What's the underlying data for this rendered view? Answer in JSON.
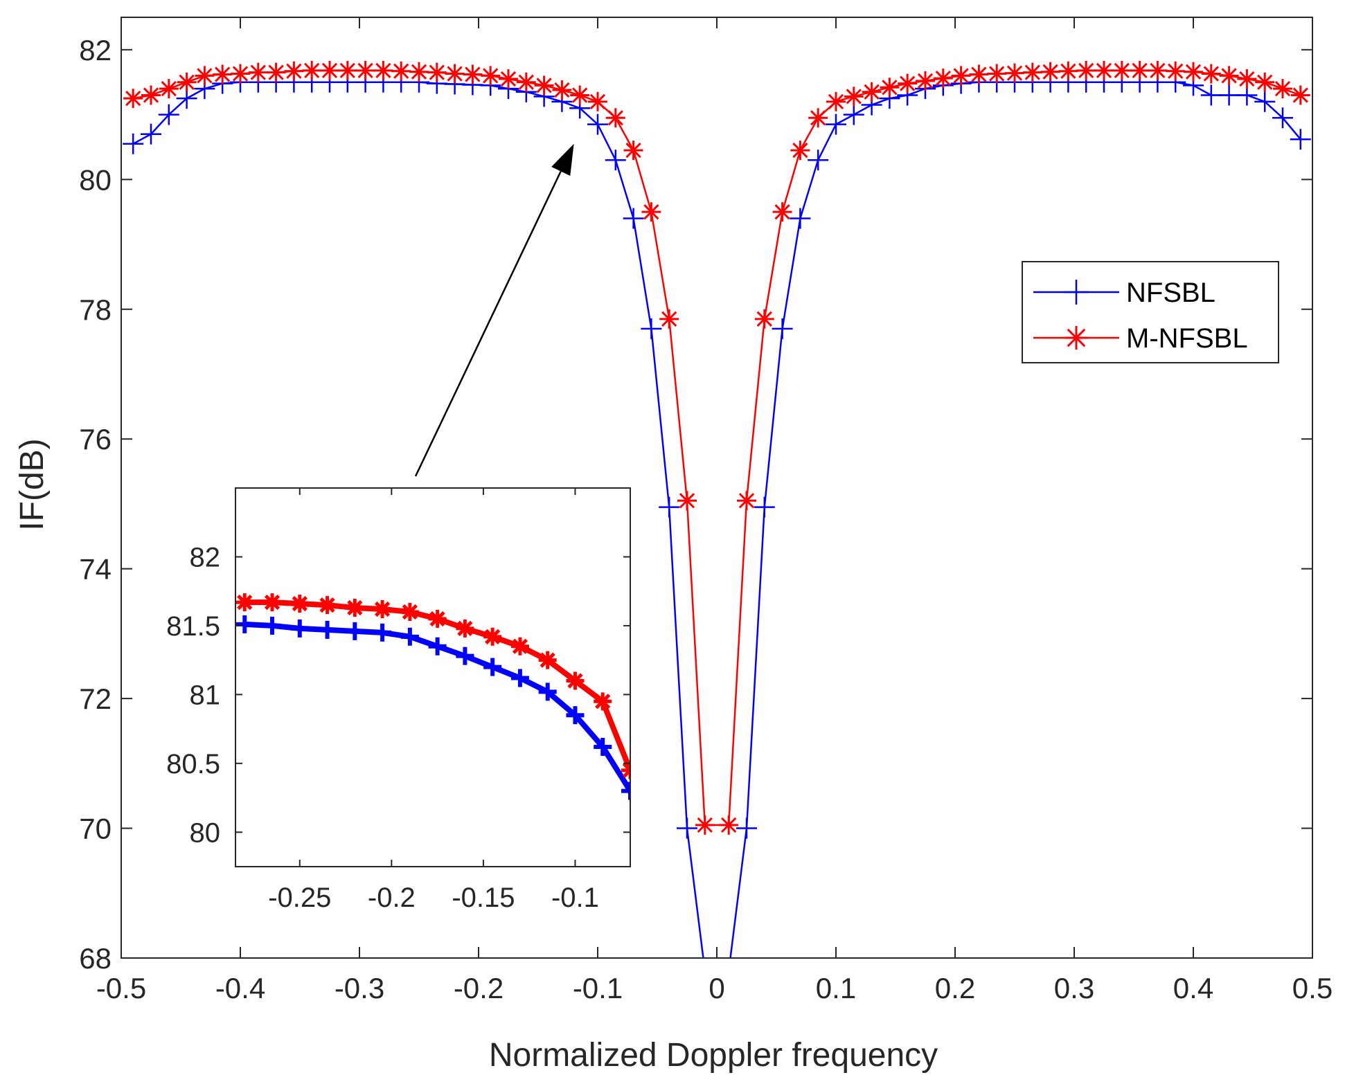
{
  "chart_data": [
    {
      "type": "line",
      "xlabel": "Normalized Doppler frequency",
      "ylabel": "IF(dB)",
      "xlim": [
        -0.5,
        0.5
      ],
      "ylim": [
        68,
        82.5
      ],
      "xticks": [
        -0.5,
        -0.4,
        -0.3,
        -0.2,
        -0.1,
        0,
        0.1,
        0.2,
        0.3,
        0.4,
        0.5
      ],
      "xtick_labels": [
        "-0.5",
        "-0.4",
        "-0.3",
        "-0.2",
        "-0.1",
        "0",
        "0.1",
        "0.2",
        "0.3",
        "0.4",
        "0.5"
      ],
      "yticks": [
        68,
        70,
        72,
        74,
        76,
        78,
        80,
        82
      ],
      "ytick_labels": [
        "68",
        "70",
        "72",
        "74",
        "76",
        "78",
        "80",
        "82"
      ],
      "grid": false,
      "legend": "right, upper-middle",
      "series": [
        {
          "name": "NFSBL",
          "color": "#0000ff",
          "marker": "plus",
          "x": [
            -0.49,
            -0.475,
            -0.46,
            -0.445,
            -0.43,
            -0.415,
            -0.4,
            -0.385,
            -0.37,
            -0.355,
            -0.34,
            -0.325,
            -0.31,
            -0.295,
            -0.28,
            -0.265,
            -0.25,
            -0.235,
            -0.22,
            -0.205,
            -0.19,
            -0.175,
            -0.16,
            -0.145,
            -0.13,
            -0.115,
            -0.1,
            -0.085,
            -0.07,
            -0.055,
            -0.04,
            -0.025,
            -0.01,
            0.01,
            0.025,
            0.04,
            0.055,
            0.07,
            0.085,
            0.1,
            0.115,
            0.13,
            0.145,
            0.16,
            0.175,
            0.19,
            0.205,
            0.22,
            0.235,
            0.25,
            0.265,
            0.28,
            0.295,
            0.31,
            0.325,
            0.34,
            0.355,
            0.37,
            0.385,
            0.4,
            0.415,
            0.43,
            0.445,
            0.46,
            0.475,
            0.49
          ],
          "y": [
            80.55,
            80.7,
            81.0,
            81.25,
            81.4,
            81.48,
            81.5,
            81.5,
            81.5,
            81.5,
            81.5,
            81.5,
            81.5,
            81.5,
            81.5,
            81.5,
            81.5,
            81.48,
            81.47,
            81.46,
            81.45,
            81.4,
            81.35,
            81.28,
            81.2,
            81.1,
            80.85,
            80.3,
            79.4,
            77.7,
            74.95,
            70.0,
            67.8,
            67.8,
            70.0,
            74.95,
            77.7,
            79.4,
            80.3,
            80.85,
            81.0,
            81.15,
            81.25,
            81.3,
            81.4,
            81.45,
            81.48,
            81.5,
            81.5,
            81.5,
            81.5,
            81.5,
            81.5,
            81.5,
            81.5,
            81.5,
            81.5,
            81.5,
            81.5,
            81.45,
            81.3,
            81.3,
            81.3,
            81.2,
            80.95,
            80.62
          ]
        },
        {
          "name": "M-NFSBL",
          "color": "#ff0000",
          "marker": "asterisk",
          "x": [
            -0.49,
            -0.475,
            -0.46,
            -0.445,
            -0.43,
            -0.415,
            -0.4,
            -0.385,
            -0.37,
            -0.355,
            -0.34,
            -0.325,
            -0.31,
            -0.295,
            -0.28,
            -0.265,
            -0.25,
            -0.235,
            -0.22,
            -0.205,
            -0.19,
            -0.175,
            -0.16,
            -0.145,
            -0.13,
            -0.115,
            -0.1,
            -0.085,
            -0.07,
            -0.055,
            -0.04,
            -0.025,
            -0.01,
            0.01,
            0.025,
            0.04,
            0.055,
            0.07,
            0.085,
            0.1,
            0.115,
            0.13,
            0.145,
            0.16,
            0.175,
            0.19,
            0.205,
            0.22,
            0.235,
            0.25,
            0.265,
            0.28,
            0.295,
            0.31,
            0.325,
            0.34,
            0.355,
            0.37,
            0.385,
            0.4,
            0.415,
            0.43,
            0.445,
            0.46,
            0.475,
            0.49
          ],
          "y": [
            81.25,
            81.3,
            81.4,
            81.5,
            81.6,
            81.62,
            81.63,
            81.65,
            81.65,
            81.67,
            81.68,
            81.68,
            81.68,
            81.68,
            81.68,
            81.67,
            81.66,
            81.65,
            81.63,
            81.62,
            81.6,
            81.55,
            81.5,
            81.45,
            81.38,
            81.3,
            81.2,
            80.95,
            80.45,
            79.5,
            77.85,
            75.05,
            70.05,
            70.05,
            75.05,
            77.85,
            79.5,
            80.45,
            80.95,
            81.2,
            81.28,
            81.35,
            81.42,
            81.48,
            81.52,
            81.56,
            81.6,
            81.62,
            81.63,
            81.64,
            81.65,
            81.66,
            81.67,
            81.68,
            81.68,
            81.68,
            81.68,
            81.68,
            81.67,
            81.66,
            81.63,
            81.6,
            81.55,
            81.5,
            81.4,
            81.3
          ]
        }
      ],
      "annotations": [
        {
          "type": "arrow",
          "from": "inset",
          "to": [
            -0.12,
            80.55
          ]
        }
      ]
    },
    {
      "type": "line",
      "role": "inset",
      "xlim": [
        -0.285,
        -0.07
      ],
      "ylim": [
        79.75,
        82.5
      ],
      "xticks": [
        -0.25,
        -0.2,
        -0.15,
        -0.1
      ],
      "xtick_labels": [
        "-0.25",
        "-0.2",
        "-0.15",
        "-0.1"
      ],
      "yticks": [
        80,
        80.5,
        81,
        81.5,
        82
      ],
      "ytick_labels": [
        "80",
        "80.5",
        "81",
        "81.5",
        "82"
      ],
      "grid": false,
      "series": [
        {
          "name": "NFSBL",
          "color": "#0000ff",
          "marker": "plus",
          "x": [
            -0.28,
            -0.265,
            -0.25,
            -0.235,
            -0.22,
            -0.205,
            -0.19,
            -0.175,
            -0.16,
            -0.145,
            -0.13,
            -0.115,
            -0.1,
            -0.085,
            -0.07
          ],
          "y": [
            81.51,
            81.5,
            81.48,
            81.47,
            81.46,
            81.45,
            81.42,
            81.35,
            81.28,
            81.2,
            81.12,
            81.02,
            80.85,
            80.62,
            80.3
          ]
        },
        {
          "name": "M-NFSBL",
          "color": "#ff0000",
          "marker": "asterisk",
          "x": [
            -0.28,
            -0.265,
            -0.25,
            -0.235,
            -0.22,
            -0.205,
            -0.19,
            -0.175,
            -0.16,
            -0.145,
            -0.13,
            -0.115,
            -0.1,
            -0.085,
            -0.07
          ],
          "y": [
            81.67,
            81.67,
            81.66,
            81.65,
            81.63,
            81.62,
            81.6,
            81.55,
            81.48,
            81.42,
            81.35,
            81.25,
            81.1,
            80.95,
            80.45
          ]
        }
      ]
    }
  ]
}
